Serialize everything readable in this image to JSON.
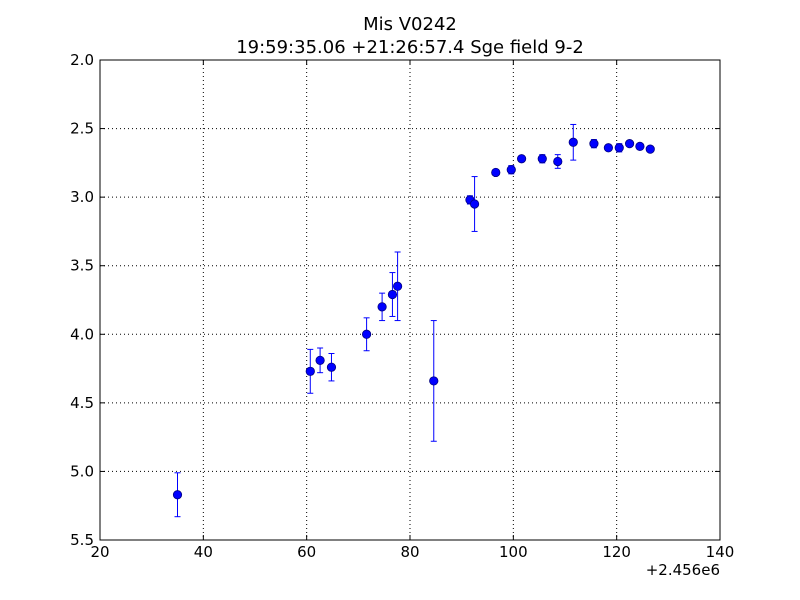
{
  "chart_data": {
    "type": "scatter",
    "title": "Mis V0242",
    "subtitle": "19:59:35.06 +21:26:57.4 Sge field 9-2",
    "xlabel": "",
    "ylabel": "",
    "x_offset_label": "+2.456e6",
    "xlim": [
      20,
      140
    ],
    "ylim": [
      2.0,
      5.5
    ],
    "y_inverted": true,
    "grid": true,
    "x_ticks": [
      "20",
      "40",
      "60",
      "80",
      "100",
      "120",
      "140"
    ],
    "y_ticks": [
      "2.0",
      "2.5",
      "3.0",
      "3.5",
      "4.0",
      "4.5",
      "5.0",
      "5.5"
    ],
    "marker_color": "#0000ff",
    "marker_edge_color": "#000080",
    "errorbar_color": "#0000ff",
    "points": [
      {
        "x": 35.0,
        "y": 5.17,
        "err": 0.16
      },
      {
        "x": 60.7,
        "y": 4.27,
        "err": 0.16
      },
      {
        "x": 62.6,
        "y": 4.19,
        "err": 0.09
      },
      {
        "x": 64.8,
        "y": 4.24,
        "err": 0.1
      },
      {
        "x": 71.6,
        "y": 4.0,
        "err": 0.12
      },
      {
        "x": 74.6,
        "y": 3.8,
        "err": 0.1
      },
      {
        "x": 76.6,
        "y": 3.71,
        "err": 0.16
      },
      {
        "x": 77.6,
        "y": 3.65,
        "err": 0.25
      },
      {
        "x": 84.6,
        "y": 4.34,
        "err": 0.44
      },
      {
        "x": 91.6,
        "y": 3.02,
        "err": 0.03
      },
      {
        "x": 92.5,
        "y": 3.05,
        "err": 0.2
      },
      {
        "x": 96.6,
        "y": 2.82,
        "err": 0.02
      },
      {
        "x": 99.6,
        "y": 2.8,
        "err": 0.03
      },
      {
        "x": 101.6,
        "y": 2.72,
        "err": 0.02
      },
      {
        "x": 105.6,
        "y": 2.72,
        "err": 0.03
      },
      {
        "x": 108.6,
        "y": 2.74,
        "err": 0.05
      },
      {
        "x": 111.6,
        "y": 2.6,
        "err": 0.13
      },
      {
        "x": 115.6,
        "y": 2.61,
        "err": 0.03
      },
      {
        "x": 118.4,
        "y": 2.64,
        "err": 0.02
      },
      {
        "x": 120.5,
        "y": 2.64,
        "err": 0.03
      },
      {
        "x": 122.5,
        "y": 2.61,
        "err": 0.02
      },
      {
        "x": 124.5,
        "y": 2.63,
        "err": 0.02
      },
      {
        "x": 126.5,
        "y": 2.65,
        "err": 0.02
      }
    ]
  }
}
